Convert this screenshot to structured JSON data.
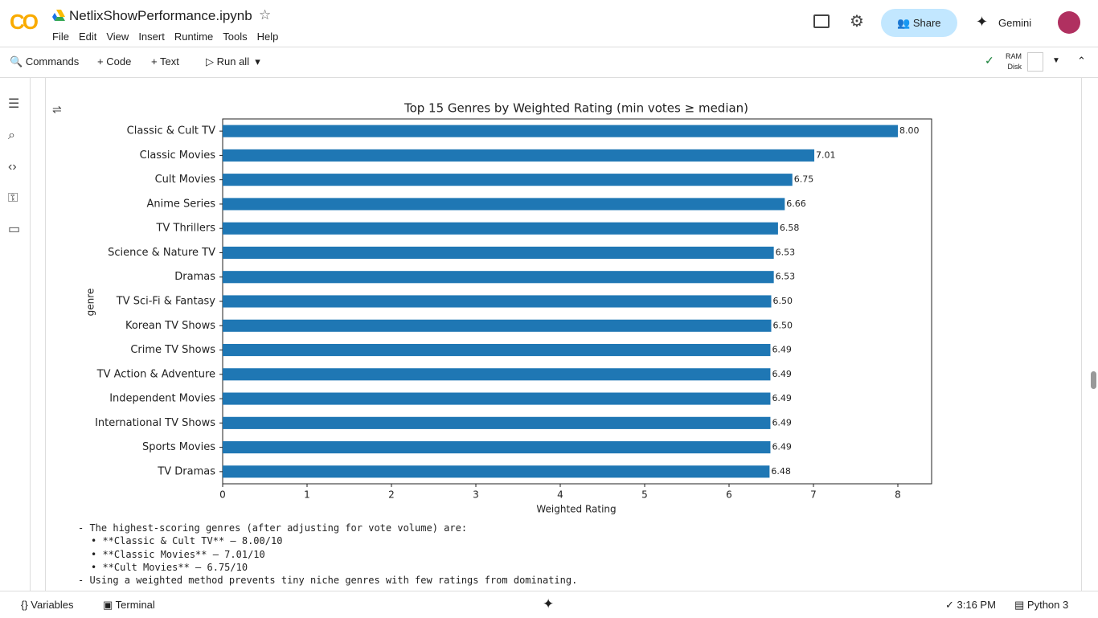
{
  "header": {
    "title": "NetlixShowPerformance.ipynb",
    "menu": [
      "File",
      "Edit",
      "View",
      "Insert",
      "Runtime",
      "Tools",
      "Help"
    ],
    "share": "Share",
    "gemini": "Gemini"
  },
  "toolbar": {
    "commands": "Commands",
    "code": "Code",
    "text": "Text",
    "run_all": "Run all",
    "ram": "RAM",
    "disk": "Disk"
  },
  "chart_data": {
    "type": "bar",
    "orientation": "horizontal",
    "title": "Top 15 Genres by Weighted Rating (min votes ≥ median)",
    "x_label": "Weighted Rating",
    "y_label": "genre",
    "categories": [
      "Classic & Cult TV",
      "Classic Movies",
      "Cult Movies",
      "Anime Series",
      "TV Thrillers",
      "Science & Nature TV",
      "Dramas",
      "TV Sci-Fi & Fantasy",
      "Korean TV Shows",
      "Crime TV Shows",
      "TV Action & Adventure",
      "Independent Movies",
      "International TV Shows",
      "Sports Movies",
      "TV Dramas"
    ],
    "values": [
      8.0,
      7.01,
      6.75,
      6.66,
      6.58,
      6.53,
      6.53,
      6.5,
      6.5,
      6.49,
      6.49,
      6.49,
      6.49,
      6.49,
      6.48
    ],
    "value_labels": [
      "8.00",
      "7.01",
      "6.75",
      "6.66",
      "6.58",
      "6.53",
      "6.53",
      "6.50",
      "6.50",
      "6.49",
      "6.49",
      "6.49",
      "6.49",
      "6.49",
      "6.48"
    ],
    "color": "#1f77b4",
    "xlim": [
      0,
      8.4
    ],
    "xticks": [
      0,
      1,
      2,
      3,
      4,
      5,
      6,
      7,
      8
    ],
    "grid": false
  },
  "output_text": [
    "- The highest-scoring genres (after adjusting for vote volume) are:",
    "• **Classic & Cult TV** — 8.00/10",
    "• **Classic Movies** — 7.01/10",
    "• **Cult Movies** — 6.75/10",
    "- Using a weighted method prevents tiny niche genres with few ratings from dominating."
  ],
  "status_bar": {
    "variables": "Variables",
    "terminal": "Terminal",
    "time": "3:16 PM",
    "runtime": "Python 3"
  }
}
